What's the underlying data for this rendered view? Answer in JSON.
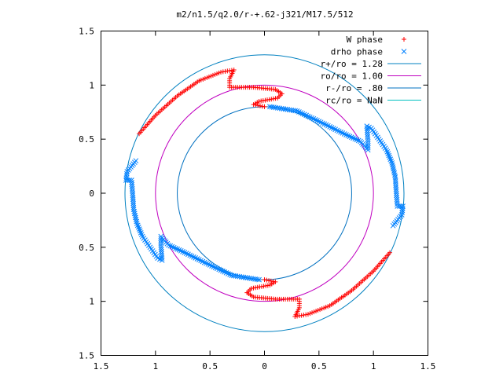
{
  "chart_data": {
    "type": "scatter",
    "title": "m2/n1.5/q2.0/r-+.62-j321/M17.5/512",
    "xlim": [
      -1.5,
      1.5
    ],
    "ylim": [
      -1.5,
      1.5
    ],
    "x_tick_values": [
      -1.5,
      -1,
      -0.5,
      0,
      0.5,
      1,
      1.5
    ],
    "x_tick_labels": [
      "1.5",
      "1",
      "0.5",
      "0",
      "0.5",
      "1",
      "1.5"
    ],
    "y_tick_values": [
      1.5,
      1,
      0.5,
      0,
      -0.5,
      -1,
      -1.5
    ],
    "y_tick_labels": [
      "1.5",
      "1",
      "0.5",
      "0",
      "0.5",
      "1",
      "1.5"
    ],
    "grid": false,
    "legend_position": "top-right",
    "legend": [
      {
        "label": "W phase",
        "kind": "point",
        "marker": "plus",
        "color": "#ff0000"
      },
      {
        "label": "drho phase",
        "kind": "point",
        "marker": "cross",
        "color": "#0080ff"
      },
      {
        "label": "r+/ro = 1.28",
        "kind": "line",
        "color": "#0080c0"
      },
      {
        "label": "ro/ro = 1.00",
        "kind": "line",
        "color": "#c000c0"
      },
      {
        "label": "r-/ro = .80",
        "kind": "line",
        "color": "#0070c0"
      },
      {
        "label": "rc/ro = NaN",
        "kind": "line",
        "color": "#00c0c0"
      }
    ],
    "circles": [
      {
        "radius": 1.28,
        "color": "#0080c0"
      },
      {
        "radius": 1.0,
        "color": "#c000c0"
      },
      {
        "radius": 0.8,
        "color": "#0070c0"
      }
    ],
    "series": [
      {
        "name": "W phase",
        "marker": "plus",
        "color": "#ff0000",
        "paths": [
          [
            [
              -1.15,
              0.55
            ],
            [
              -1.0,
              0.72
            ],
            [
              -0.8,
              0.9
            ],
            [
              -0.6,
              1.04
            ],
            [
              -0.4,
              1.12
            ],
            [
              -0.28,
              1.14
            ],
            [
              -0.32,
              1.06
            ],
            [
              -0.32,
              0.98
            ],
            [
              -0.1,
              0.98
            ],
            [
              0.1,
              0.96
            ],
            [
              0.16,
              0.92
            ],
            [
              0.12,
              0.88
            ],
            [
              -0.05,
              0.85
            ],
            [
              -0.1,
              0.82
            ],
            [
              0.0,
              0.8
            ]
          ],
          [
            [
              1.15,
              -0.55
            ],
            [
              1.0,
              -0.72
            ],
            [
              0.8,
              -0.9
            ],
            [
              0.6,
              -1.04
            ],
            [
              0.4,
              -1.12
            ],
            [
              0.28,
              -1.14
            ],
            [
              0.32,
              -1.06
            ],
            [
              0.32,
              -0.98
            ],
            [
              0.1,
              -0.98
            ],
            [
              -0.1,
              -0.96
            ],
            [
              -0.16,
              -0.92
            ],
            [
              -0.12,
              -0.88
            ],
            [
              0.05,
              -0.85
            ],
            [
              0.1,
              -0.82
            ],
            [
              0.0,
              -0.8
            ]
          ]
        ]
      },
      {
        "name": "drho phase",
        "marker": "cross",
        "color": "#0080ff",
        "paths": [
          [
            [
              0.05,
              0.8
            ],
            [
              0.3,
              0.76
            ],
            [
              0.55,
              0.64
            ],
            [
              0.75,
              0.54
            ],
            [
              0.88,
              0.48
            ],
            [
              0.95,
              0.4
            ],
            [
              0.95,
              0.48
            ],
            [
              0.94,
              0.62
            ],
            [
              0.98,
              0.6
            ],
            [
              1.05,
              0.5
            ],
            [
              1.12,
              0.4
            ],
            [
              1.17,
              0.28
            ],
            [
              1.2,
              0.15
            ],
            [
              1.21,
              0.0
            ],
            [
              1.22,
              -0.12
            ],
            [
              1.27,
              -0.12
            ],
            [
              1.26,
              -0.2
            ],
            [
              1.18,
              -0.3
            ]
          ],
          [
            [
              -0.05,
              -0.8
            ],
            [
              -0.3,
              -0.76
            ],
            [
              -0.55,
              -0.64
            ],
            [
              -0.75,
              -0.54
            ],
            [
              -0.88,
              -0.48
            ],
            [
              -0.95,
              -0.4
            ],
            [
              -0.95,
              -0.48
            ],
            [
              -0.94,
              -0.62
            ],
            [
              -0.98,
              -0.6
            ],
            [
              -1.05,
              -0.5
            ],
            [
              -1.12,
              -0.4
            ],
            [
              -1.17,
              -0.28
            ],
            [
              -1.2,
              -0.15
            ],
            [
              -1.21,
              0.0
            ],
            [
              -1.22,
              0.12
            ],
            [
              -1.27,
              0.12
            ],
            [
              -1.26,
              0.2
            ],
            [
              -1.18,
              0.3
            ]
          ]
        ]
      }
    ]
  }
}
